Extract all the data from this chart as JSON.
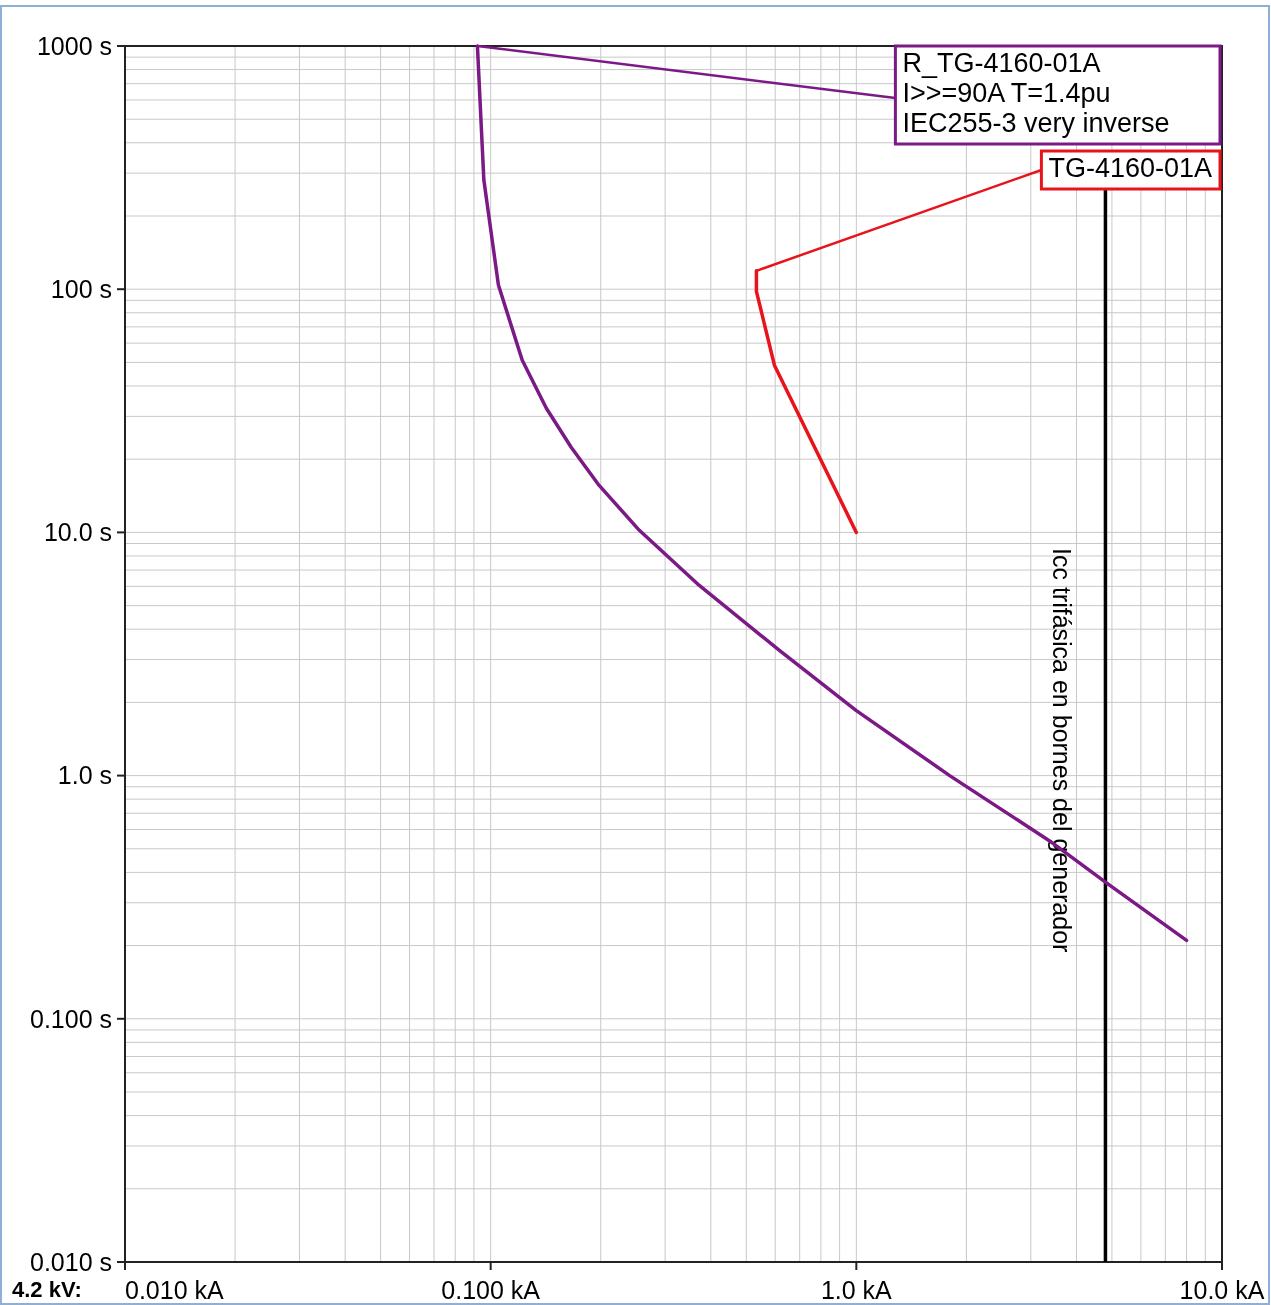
{
  "chart_data": {
    "type": "line",
    "log": "xy",
    "grid": true,
    "xlim": [
      0.01,
      10
    ],
    "ylim": [
      0.01,
      1000
    ],
    "xticks": [
      {
        "value": 0.01,
        "label": "0.010 kA"
      },
      {
        "value": 0.1,
        "label": "0.100 kA"
      },
      {
        "value": 1,
        "label": "1.0 kA"
      },
      {
        "value": 10,
        "label": "10.0 kA"
      }
    ],
    "yticks": [
      {
        "value": 0.01,
        "label": "0.010 s"
      },
      {
        "value": 0.1,
        "label": "0.100 s"
      },
      {
        "value": 1,
        "label": "1.0 s"
      },
      {
        "value": 10,
        "label": "10.0 s"
      },
      {
        "value": 100,
        "label": "100 s"
      },
      {
        "value": 1000,
        "label": "1000 s"
      }
    ],
    "series": [
      {
        "color": "#7b1a86",
        "x": [
          0.092,
          0.0958,
          0.105,
          0.122,
          0.142,
          0.166,
          0.198,
          0.255,
          0.372,
          0.616,
          1.0,
          1.8,
          3.37,
          4.82,
          8.0
        ],
        "values": [
          1000,
          281,
          104,
          51,
          32.4,
          22.4,
          15.6,
          10.2,
          6.05,
          3.27,
          1.85,
          1.0,
          0.54,
          0.363,
          0.21
        ]
      },
      {
        "color": "#e8141c",
        "x": [
          0.533,
          0.533,
          0.597,
          1.0
        ],
        "values": [
          119,
          98,
          48.7,
          10.0
        ]
      }
    ],
    "ref_lines": [
      {
        "axis": "x",
        "value": 4.8,
        "label": "Icc trifásica en bornes del generador",
        "color": "#000000"
      }
    ],
    "annotations": [
      {
        "text": "R_TG-4160-01A\nI>>=90A T=1.4pu\nIEC255-3 very inverse",
        "x": 0.092,
        "y": 1000
      },
      {
        "text": "TG-4160-01A",
        "x": 0.533,
        "y": 119
      },
      "4.2 kV:"
    ]
  }
}
